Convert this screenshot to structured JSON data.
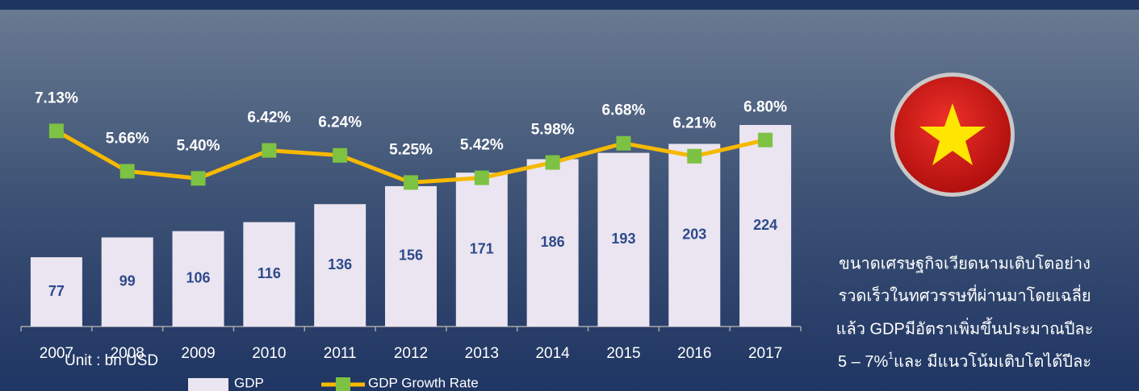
{
  "chart_data": {
    "type": "bar_line",
    "categories": [
      "2007",
      "2008",
      "2009",
      "2010",
      "2011",
      "2012",
      "2013",
      "2014",
      "2015",
      "2016",
      "2017"
    ],
    "series": [
      {
        "name": "GDP",
        "color": "#ebe5f1",
        "values": [
          77,
          99,
          106,
          116,
          136,
          156,
          171,
          186,
          193,
          203,
          224
        ]
      },
      {
        "name": "GDP Growth Rate",
        "color": "#f6b900",
        "marker_color": "#7dc243",
        "axis": "y2",
        "values": [
          7.13,
          5.66,
          5.4,
          6.42,
          6.24,
          5.25,
          5.42,
          5.98,
          6.68,
          6.21,
          6.8
        ],
        "value_labels": [
          "7.13%",
          "5.66%",
          "5.40%",
          "6.42%",
          "6.24%",
          "5.25%",
          "5.42%",
          "5.98%",
          "6.68%",
          "6.21%",
          "6.80%"
        ]
      }
    ],
    "ylim": [
      0,
      250
    ],
    "y2lim": [
      0,
      8.2
    ],
    "unit_label": "Unit : bn USD",
    "annotation_lines": [
      "ขนาดเศรษฐกิจเวียดนามเติบโตอย่าง",
      "รวดเร็วในทศวรรษที่ผ่านมาโดยเฉลี่ย",
      "แล้ว GDPมีอัตราเพิ่มขึ้นประมาณปีละ"
    ],
    "annotation_last_line": [
      "5 – 7%",
      "1",
      "และ มีแนวโน้มเติบโตได้ปีละ"
    ]
  }
}
